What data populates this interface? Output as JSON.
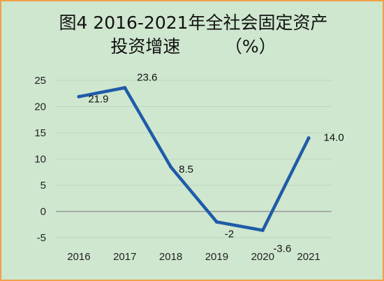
{
  "chart_data": {
    "type": "line",
    "title": "图4 2016-2021年全社会固定资产",
    "subtitle": "投资增速        （%）",
    "xlabel": "",
    "ylabel": "",
    "categories": [
      "2016",
      "2017",
      "2018",
      "2019",
      "2020",
      "2021"
    ],
    "series": [
      {
        "values": [
          21.9,
          23.6,
          8.5,
          -2,
          -3.6,
          14.0
        ],
        "labels": [
          "21.9",
          "23.6",
          "8.5",
          "-2",
          "-3.6",
          "14.0"
        ]
      }
    ],
    "ylim": [
      -5,
      25
    ],
    "yticks": [
      "-5",
      "0",
      "5",
      "10",
      "15",
      "20",
      "25"
    ],
    "grid": true,
    "legend": "none"
  },
  "colors": {
    "background": "#cfe7cf",
    "border": "#f0a04a",
    "line": "#1f5ba8",
    "gridline": "#bcd6bc",
    "zero_axis": "#9a9a9a"
  }
}
